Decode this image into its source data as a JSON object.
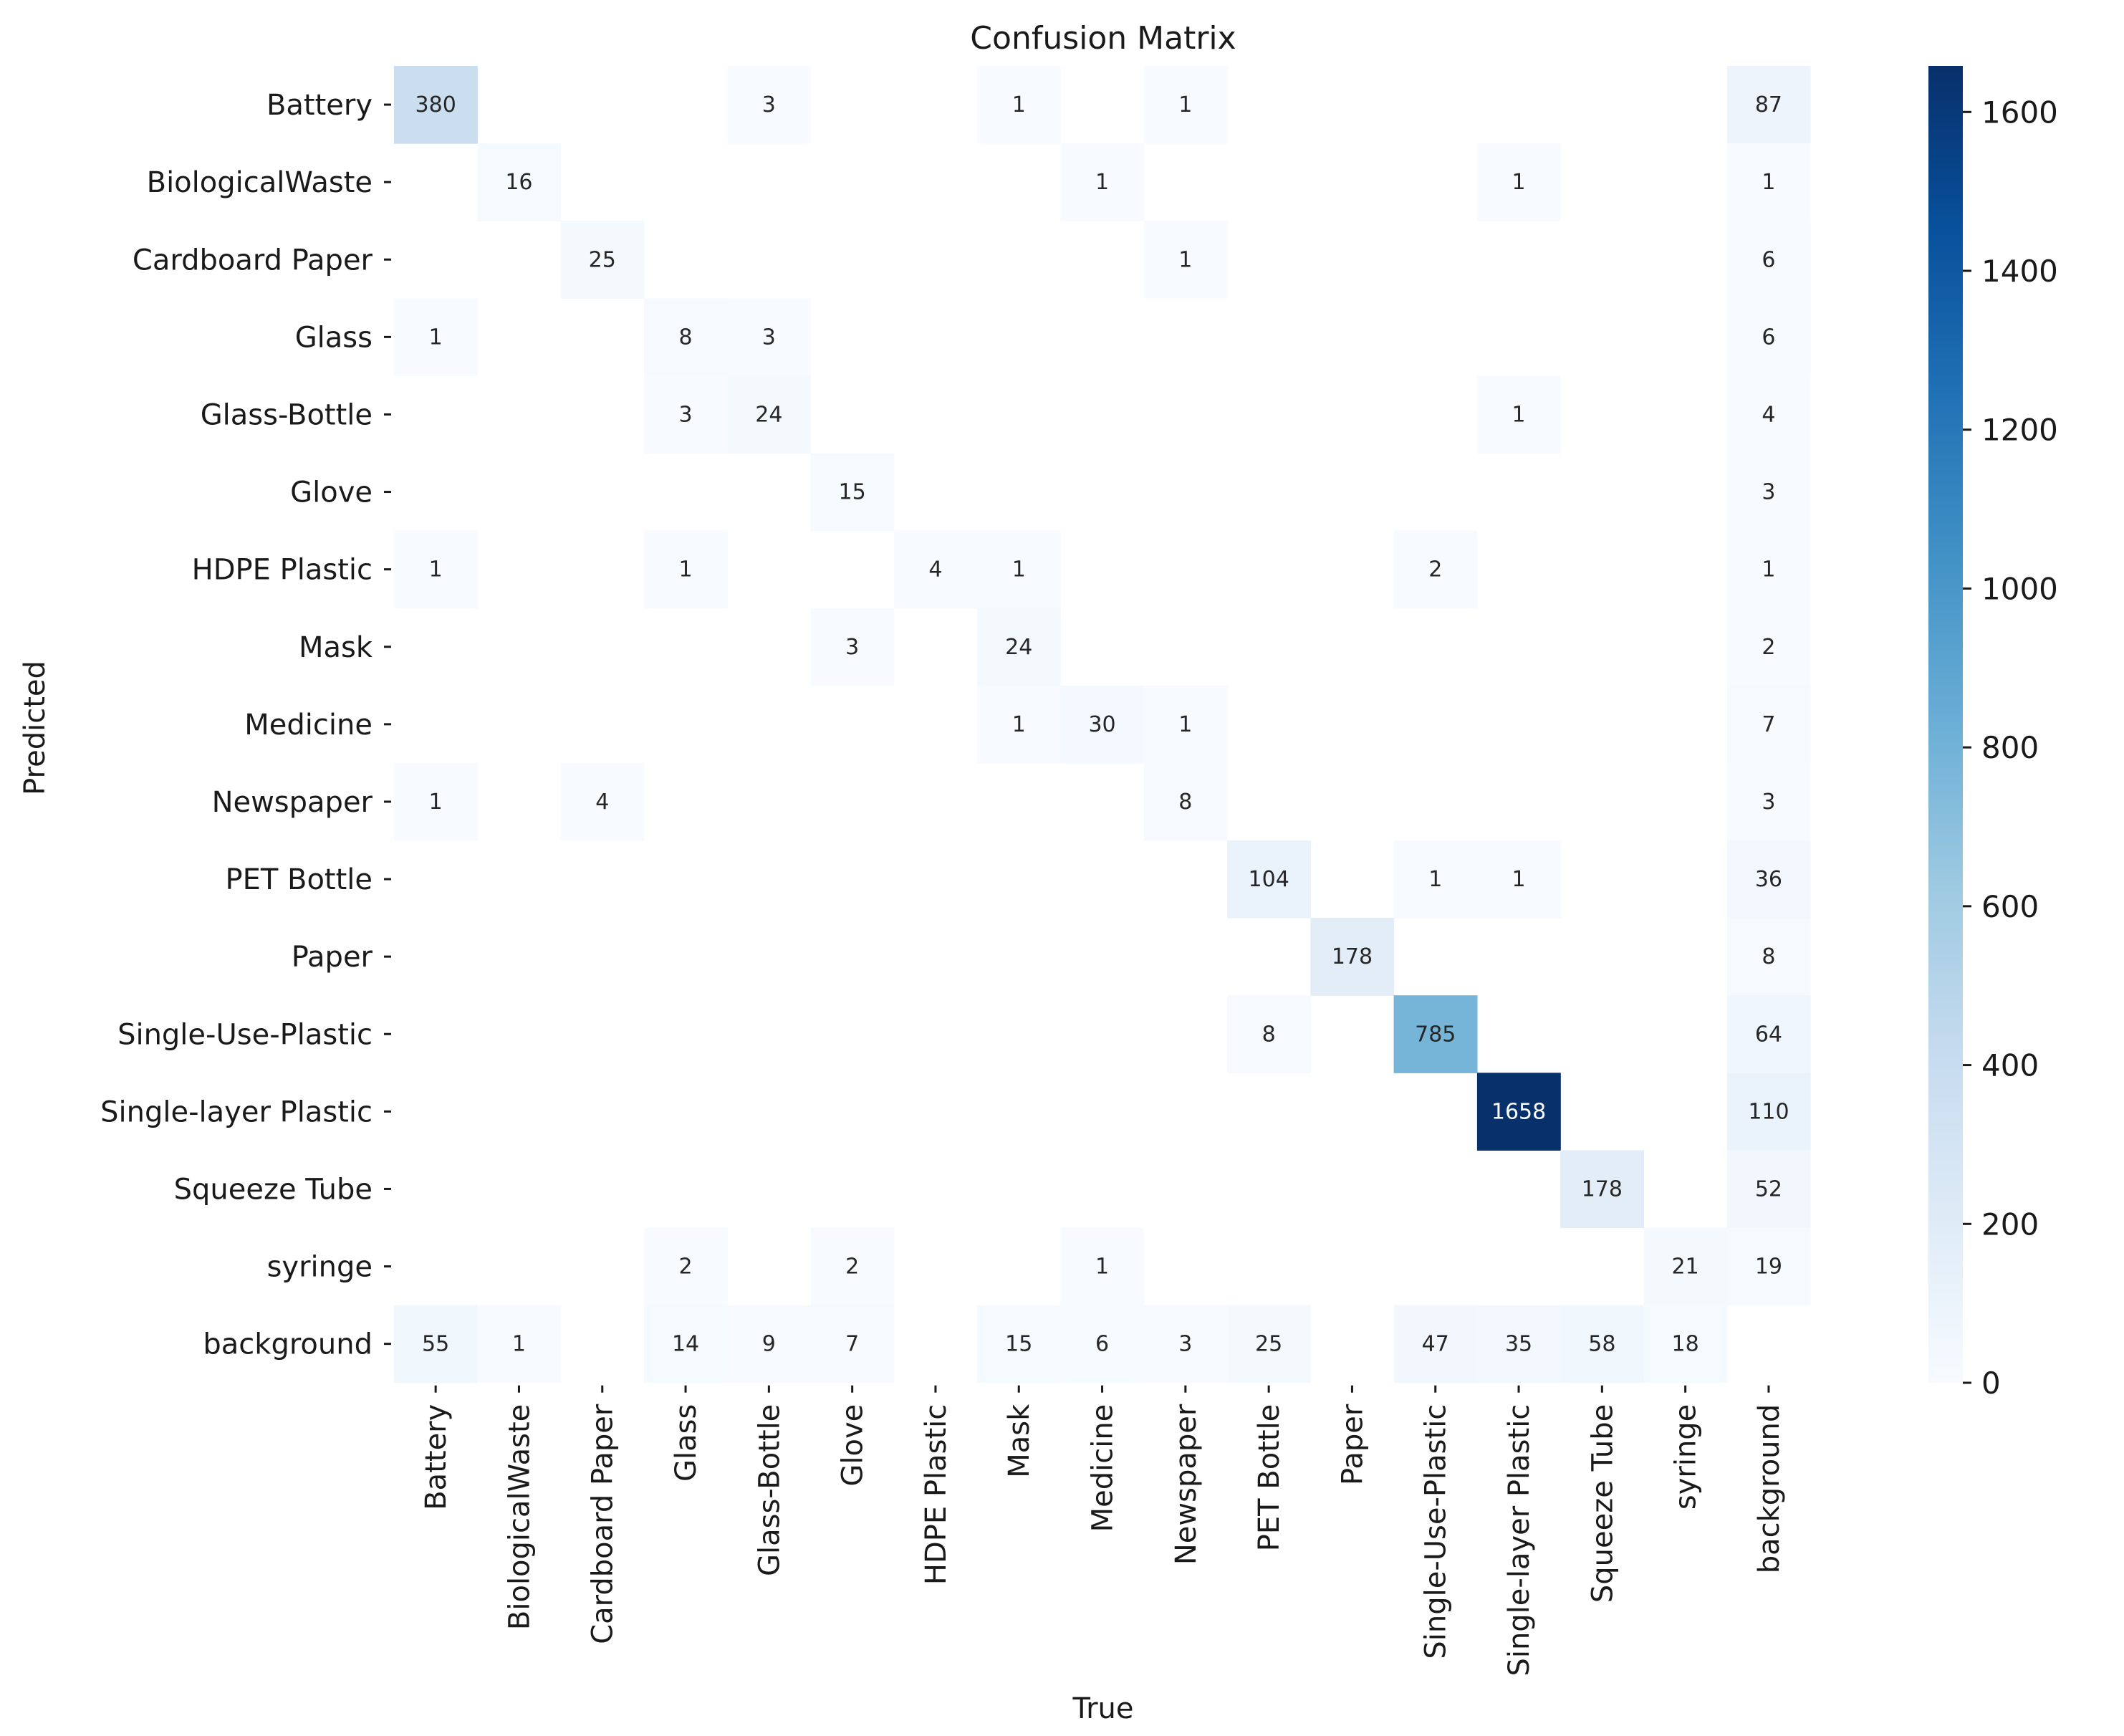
{
  "chart_data": {
    "type": "heatmap",
    "title": "Confusion Matrix",
    "xlabel": "True",
    "ylabel": "Predicted",
    "row_labels": [
      "Battery",
      "BiologicalWaste",
      "Cardboard Paper",
      "Glass",
      "Glass-Bottle",
      "Glove",
      "HDPE Plastic",
      "Mask",
      "Medicine",
      "Newspaper",
      "PET Bottle",
      "Paper",
      "Single-Use-Plastic",
      "Single-layer Plastic",
      "Squeeze Tube",
      "syringe",
      "background"
    ],
    "col_labels": [
      "Battery",
      "BiologicalWaste",
      "Cardboard Paper",
      "Glass",
      "Glass-Bottle",
      "Glove",
      "HDPE Plastic",
      "Mask",
      "Medicine",
      "Newspaper",
      "PET Bottle",
      "Paper",
      "Single-Use-Plastic",
      "Single-layer Plastic",
      "Squeeze Tube",
      "syringe",
      "background"
    ],
    "values": [
      [
        380,
        null,
        null,
        null,
        3,
        null,
        null,
        1,
        null,
        1,
        null,
        null,
        null,
        null,
        null,
        null,
        87
      ],
      [
        null,
        16,
        null,
        null,
        null,
        null,
        null,
        null,
        1,
        null,
        null,
        null,
        null,
        1,
        null,
        null,
        1
      ],
      [
        null,
        null,
        25,
        null,
        null,
        null,
        null,
        null,
        null,
        1,
        null,
        null,
        null,
        null,
        null,
        null,
        6
      ],
      [
        1,
        null,
        null,
        8,
        3,
        null,
        null,
        null,
        null,
        null,
        null,
        null,
        null,
        null,
        null,
        null,
        6
      ],
      [
        null,
        null,
        null,
        3,
        24,
        null,
        null,
        null,
        null,
        null,
        null,
        null,
        null,
        1,
        null,
        null,
        4
      ],
      [
        null,
        null,
        null,
        null,
        null,
        15,
        null,
        null,
        null,
        null,
        null,
        null,
        null,
        null,
        null,
        null,
        3
      ],
      [
        1,
        null,
        null,
        1,
        null,
        null,
        4,
        1,
        null,
        null,
        null,
        null,
        2,
        null,
        null,
        null,
        1
      ],
      [
        null,
        null,
        null,
        null,
        null,
        3,
        null,
        24,
        null,
        null,
        null,
        null,
        null,
        null,
        null,
        null,
        2
      ],
      [
        null,
        null,
        null,
        null,
        null,
        null,
        null,
        1,
        30,
        1,
        null,
        null,
        null,
        null,
        null,
        null,
        7
      ],
      [
        1,
        null,
        4,
        null,
        null,
        null,
        null,
        null,
        null,
        8,
        null,
        null,
        null,
        null,
        null,
        null,
        3
      ],
      [
        null,
        null,
        null,
        null,
        null,
        null,
        null,
        null,
        null,
        null,
        104,
        null,
        1,
        1,
        null,
        null,
        36
      ],
      [
        null,
        null,
        null,
        null,
        null,
        null,
        null,
        null,
        null,
        null,
        null,
        178,
        null,
        null,
        null,
        null,
        8
      ],
      [
        null,
        null,
        null,
        null,
        null,
        null,
        null,
        null,
        null,
        null,
        8,
        null,
        785,
        null,
        null,
        null,
        64
      ],
      [
        null,
        null,
        null,
        null,
        null,
        null,
        null,
        null,
        null,
        null,
        null,
        null,
        null,
        1658,
        null,
        null,
        110
      ],
      [
        null,
        null,
        null,
        null,
        null,
        null,
        null,
        null,
        null,
        null,
        null,
        null,
        null,
        null,
        178,
        null,
        52
      ],
      [
        null,
        null,
        null,
        2,
        null,
        2,
        null,
        null,
        1,
        null,
        null,
        null,
        null,
        null,
        null,
        21,
        19
      ],
      [
        55,
        1,
        null,
        14,
        9,
        7,
        null,
        15,
        6,
        3,
        25,
        null,
        47,
        35,
        58,
        18,
        null
      ]
    ],
    "colorbar": {
      "min": 0,
      "max": 1658,
      "ticks": [
        0,
        200,
        400,
        600,
        800,
        1000,
        1200,
        1400,
        1600
      ]
    },
    "colormap": [
      "#f7fbff",
      "#deebf7",
      "#c6dbef",
      "#9ecae1",
      "#6baed6",
      "#4292c6",
      "#2171b5",
      "#08519c",
      "#08306b"
    ]
  }
}
